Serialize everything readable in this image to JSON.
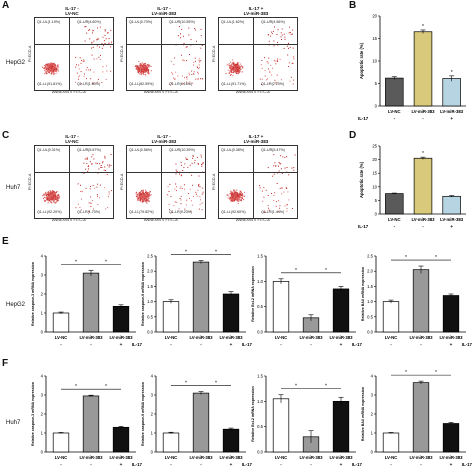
{
  "panels": {
    "A": "A",
    "B": "B",
    "C": "C",
    "D": "D",
    "E": "E",
    "F": "F"
  },
  "rows": {
    "hepg2": "HepG2",
    "huh7": "Huh7"
  },
  "flow_titles": [
    "LV-NC",
    "LV-miR-383",
    "LV-miR-383"
  ],
  "flow_titles_top": [
    "IL-17 -",
    "IL-17 -",
    "IL-17 +"
  ],
  "flow_axis": {
    "x": "ANNEXIN V FITC-A",
    "y": "PI ECD-A"
  },
  "flow_A": [
    {
      "ul": "Q1-UL(1.19%)",
      "ur": "Q1-UR(4.60%)",
      "ll": "Q1-LL(91.81%)",
      "lr": "Q1-LR(1.80%)"
    },
    {
      "ul": "Q1-UL(0.70%)",
      "ur": "Q1-UR(10.55%)",
      "ll": "Q1-LL(82.59%)",
      "lr": "Q1-LR(6.16%)"
    },
    {
      "ul": "Q1-UL(1.62%)",
      "ur": "Q1-UR(4.56%)",
      "ll": "Q1-LL(91.71%)",
      "lr": "Q1-LR(2.10%)"
    }
  ],
  "flow_C": [
    {
      "ul": "Q1-UL(0.31%)",
      "ur": "Q1-UR(5.67%)",
      "ll": "Q1-LL(92.20%)",
      "lr": "Q1-LR(1.70%)"
    },
    {
      "ul": "Q1-UL(0.56%)",
      "ur": "Q1-UR(10.39%)",
      "ll": "Q1-LL(79.82%)",
      "lr": "Q1-LR(9.23%)"
    },
    {
      "ul": "Q1-UL(0.38%)",
      "ur": "Q1-UR(5.47%)",
      "ll": "Q1-LL(92.60%)",
      "lr": "Q1-LR(1.44%)"
    }
  ],
  "chart_data": [
    {
      "id": "B",
      "type": "bar",
      "categories": [
        "LV-NC",
        "LV-miR-383",
        "LV-miR-383"
      ],
      "il17": [
        "-",
        "-",
        "+"
      ],
      "values": [
        6.2,
        16.5,
        6.1
      ],
      "errors": [
        0.3,
        0.4,
        0.6
      ],
      "ylabel": "Apoptotic rate (%)",
      "ylim": [
        0,
        20
      ],
      "yticks": [
        0,
        5,
        10,
        15,
        20
      ],
      "colors": [
        "#5a5a5a",
        "#d9c97a",
        "#b7d4e2"
      ],
      "sig": [
        false,
        true,
        true
      ]
    },
    {
      "id": "D",
      "type": "bar",
      "categories": [
        "LV-NC",
        "LV-miR-383",
        "LV-miR-383"
      ],
      "il17": [
        "-",
        "-",
        "+"
      ],
      "values": [
        7.5,
        20.5,
        6.5
      ],
      "errors": [
        0.2,
        0.4,
        0.3
      ],
      "ylabel": "Apoptotic rate (%)",
      "ylim": [
        0,
        25
      ],
      "yticks": [
        0,
        5,
        10,
        15,
        20,
        25
      ],
      "colors": [
        "#5a5a5a",
        "#d9c97a",
        "#b7d4e2"
      ],
      "sig": [
        false,
        true,
        false
      ]
    },
    {
      "id": "E1",
      "type": "bar",
      "categories": [
        "LV-NC",
        "LV-miR-383",
        "LV-miR-383"
      ],
      "il17": [
        "-",
        "-",
        "+"
      ],
      "values": [
        1.0,
        3.1,
        1.35
      ],
      "errors": [
        0.05,
        0.15,
        0.08
      ],
      "ylabel": "Relative caspase-3 mRNA expression",
      "ylim": [
        0,
        4
      ],
      "yticks": [
        0,
        1,
        2,
        3,
        4
      ],
      "colors": [
        "#ffffff",
        "#999999",
        "#111111"
      ]
    },
    {
      "id": "E2",
      "type": "bar",
      "categories": [
        "LV-NC",
        "LV-miR-383",
        "LV-miR-383"
      ],
      "il17": [
        "-",
        "-",
        "+"
      ],
      "values": [
        1.0,
        2.3,
        1.25
      ],
      "errors": [
        0.06,
        0.05,
        0.08
      ],
      "ylabel": "Relative caspase-9 mRNA expression",
      "ylim": [
        0,
        2.5
      ],
      "yticks": [
        0.0,
        0.5,
        1.0,
        1.5,
        2.0,
        2.5
      ],
      "colors": [
        "#ffffff",
        "#999999",
        "#111111"
      ]
    },
    {
      "id": "E3",
      "type": "bar",
      "categories": [
        "LV-NC",
        "LV-miR-383",
        "LV-miR-383"
      ],
      "il17": [
        "-",
        "-",
        "+"
      ],
      "values": [
        1.0,
        0.28,
        0.85
      ],
      "errors": [
        0.05,
        0.06,
        0.05
      ],
      "ylabel": "Relative Bcl-2 mRNA expression",
      "ylim": [
        0,
        1.5
      ],
      "yticks": [
        0.0,
        0.5,
        1.0,
        1.5
      ],
      "colors": [
        "#ffffff",
        "#999999",
        "#111111"
      ]
    },
    {
      "id": "E4",
      "type": "bar",
      "categories": [
        "LV-NC",
        "LV-miR-383",
        "LV-miR-383"
      ],
      "il17": [
        "-",
        "-",
        "+"
      ],
      "values": [
        1.0,
        2.05,
        1.2
      ],
      "errors": [
        0.05,
        0.12,
        0.05
      ],
      "ylabel": "Relative BAX mRNA expression",
      "ylim": [
        0,
        2.5
      ],
      "yticks": [
        0.0,
        0.5,
        1.0,
        1.5,
        2.0,
        2.5
      ],
      "colors": [
        "#ffffff",
        "#999999",
        "#111111"
      ]
    },
    {
      "id": "F1",
      "type": "bar",
      "categories": [
        "LV-NC",
        "LV-miR-383",
        "LV-miR-383"
      ],
      "il17": [
        "-",
        "-",
        "+"
      ],
      "values": [
        1.0,
        2.95,
        1.3
      ],
      "errors": [
        0.03,
        0.04,
        0.05
      ],
      "ylabel": "Relative caspase-3 mRNA expression",
      "ylim": [
        0,
        4
      ],
      "yticks": [
        0,
        1,
        2,
        3,
        4
      ],
      "colors": [
        "#ffffff",
        "#999999",
        "#111111"
      ]
    },
    {
      "id": "F2",
      "type": "bar",
      "categories": [
        "LV-NC",
        "LV-miR-383",
        "LV-miR-383"
      ],
      "il17": [
        "-",
        "-",
        "+"
      ],
      "values": [
        1.0,
        3.1,
        1.2
      ],
      "errors": [
        0.04,
        0.08,
        0.06
      ],
      "ylabel": "Relative caspase-9 mRNA expression",
      "ylim": [
        0,
        4
      ],
      "yticks": [
        0,
        1,
        2,
        3,
        4
      ],
      "colors": [
        "#ffffff",
        "#999999",
        "#111111"
      ]
    },
    {
      "id": "F3",
      "type": "bar",
      "categories": [
        "LV-NC",
        "LV-miR-383",
        "LV-miR-383"
      ],
      "il17": [
        "-",
        "-",
        "+"
      ],
      "values": [
        1.05,
        0.3,
        1.0
      ],
      "errors": [
        0.08,
        0.12,
        0.08
      ],
      "ylabel": "Relative Bcl-2 mRNA expression",
      "ylim": [
        0,
        1.5
      ],
      "yticks": [
        0.0,
        0.5,
        1.0,
        1.5
      ],
      "colors": [
        "#ffffff",
        "#999999",
        "#111111"
      ]
    },
    {
      "id": "F4",
      "type": "bar",
      "categories": [
        "LV-NC",
        "LV-miR-383",
        "LV-miR-383"
      ],
      "il17": [
        "-",
        "-",
        "+"
      ],
      "values": [
        1.0,
        3.65,
        1.5
      ],
      "errors": [
        0.03,
        0.08,
        0.06
      ],
      "ylabel": "Relative BAX mRNA expression",
      "ylim": [
        0,
        4
      ],
      "yticks": [
        0,
        1,
        2,
        3,
        4
      ],
      "colors": [
        "#ffffff",
        "#999999",
        "#111111"
      ]
    }
  ],
  "il17_label": "IL-17",
  "sig_mark": "*"
}
